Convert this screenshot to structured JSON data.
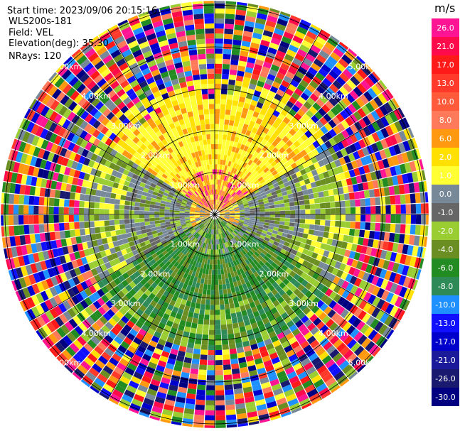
{
  "header": {
    "start_time": "Start time: 2023/09/06 20:15:16",
    "instrument": "WLS200s-181",
    "field": "Field: VEL",
    "elevation": "Elevation(deg): 35.30",
    "nrays": "NRays: 120"
  },
  "chart_data": {
    "type": "ppi_polar_scan",
    "field": "VEL",
    "units": "m/s",
    "n_rays": 120,
    "elevation_deg": 35.3,
    "range_rings_km": [
      1.0,
      2.0,
      3.0,
      4.0,
      5.0
    ],
    "range_ring_labels": [
      "1.00km",
      "2.00km",
      "3.00km",
      "4.00km",
      "5.00km"
    ],
    "max_range_km": 5.1,
    "azimuth_lines_deg": [
      0,
      30,
      60,
      90,
      120,
      150,
      180,
      210,
      240,
      270,
      300,
      330
    ],
    "colorbar": {
      "unit_label": "m/s",
      "ticks": [
        "26.0",
        "21.0",
        "17.0",
        "13.0",
        "10.0",
        "8.0",
        "6.0",
        "2.0",
        "1.0",
        "0.0",
        "-1.0",
        "-2.0",
        "-4.0",
        "-6.0",
        "-8.0",
        "-10.0",
        "-13.0",
        "-17.0",
        "-21.0",
        "-26.0",
        "-30.0"
      ],
      "colors": [
        "#ff1493",
        "#ff0a4a",
        "#ff1a1a",
        "#ff3a2a",
        "#ff5a3a",
        "#ff7a5a",
        "#ff9a10",
        "#ffe000",
        "#ffff33",
        "#778899",
        "#666666",
        "#9acd32",
        "#6b8e23",
        "#228b22",
        "#2e8b57",
        "#1e90ff",
        "#1010ff",
        "#0000cd",
        "#1a1a9a",
        "#191970",
        "#000080"
      ]
    },
    "legend_placement": "right",
    "pattern_description_zones": [
      {
        "range_km": [
          0.0,
          1.1
        ],
        "sector": "north",
        "dominant": "orange"
      },
      {
        "range_km": [
          1.1,
          3.1
        ],
        "sector": "north",
        "dominant": "yellow"
      },
      {
        "range_km": [
          0.5,
          2.5
        ],
        "sector": "east-west",
        "dominant": "gray"
      },
      {
        "range_km": [
          0.3,
          3.2
        ],
        "sector": "south",
        "dominant": "green"
      },
      {
        "range_km": [
          3.2,
          5.1
        ],
        "sector": "all",
        "dominant": "noise"
      }
    ]
  }
}
